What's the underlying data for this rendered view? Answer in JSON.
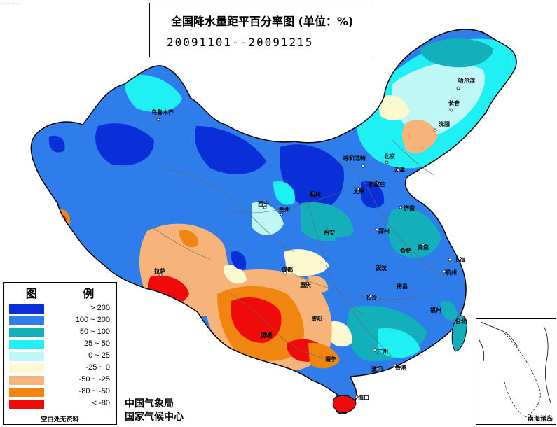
{
  "corner_mark": "---- ----",
  "title": {
    "main": "全国降水量距平百分率图 (单位：%)",
    "date_range": "20091101--20091215"
  },
  "legend": {
    "title": "图 例",
    "items": [
      {
        "label": "> 200",
        "color": "#0a2fd8"
      },
      {
        "label": "100 ~ 200",
        "color": "#2f7dea"
      },
      {
        "label": "50 ~ 100",
        "color": "#13b0bc"
      },
      {
        "label": "25 ~ 50",
        "color": "#1ef0f4"
      },
      {
        "label": "0 ~ 25",
        "color": "#bff6f6"
      },
      {
        "label": "-25 ~ 0",
        "color": "#fcf8d0"
      },
      {
        "label": "-50 ~ -25",
        "color": "#f6b47a"
      },
      {
        "label": "-80 ~ -50",
        "color": "#f0860f"
      },
      {
        "label": "< -80",
        "color": "#f00a0a"
      }
    ],
    "note": "空白处无资料"
  },
  "credits": {
    "line1": "中国气象局",
    "line2": "国家气候中心"
  },
  "inset": {
    "label": "南海诸岛"
  },
  "cities": [
    "乌鲁木齐",
    "哈尔滨",
    "长春",
    "沈阳",
    "呼和浩特",
    "北京",
    "天津",
    "石家庄",
    "太原",
    "济南",
    "银川",
    "西宁",
    "兰州",
    "西安",
    "郑州",
    "合肥",
    "南京",
    "上海",
    "武汉",
    "杭州",
    "拉萨",
    "成都",
    "重庆",
    "长沙",
    "南昌",
    "福州",
    "台北",
    "贵阳",
    "昆明",
    "南宁",
    "广州",
    "香港",
    "澳门",
    "海口"
  ]
}
